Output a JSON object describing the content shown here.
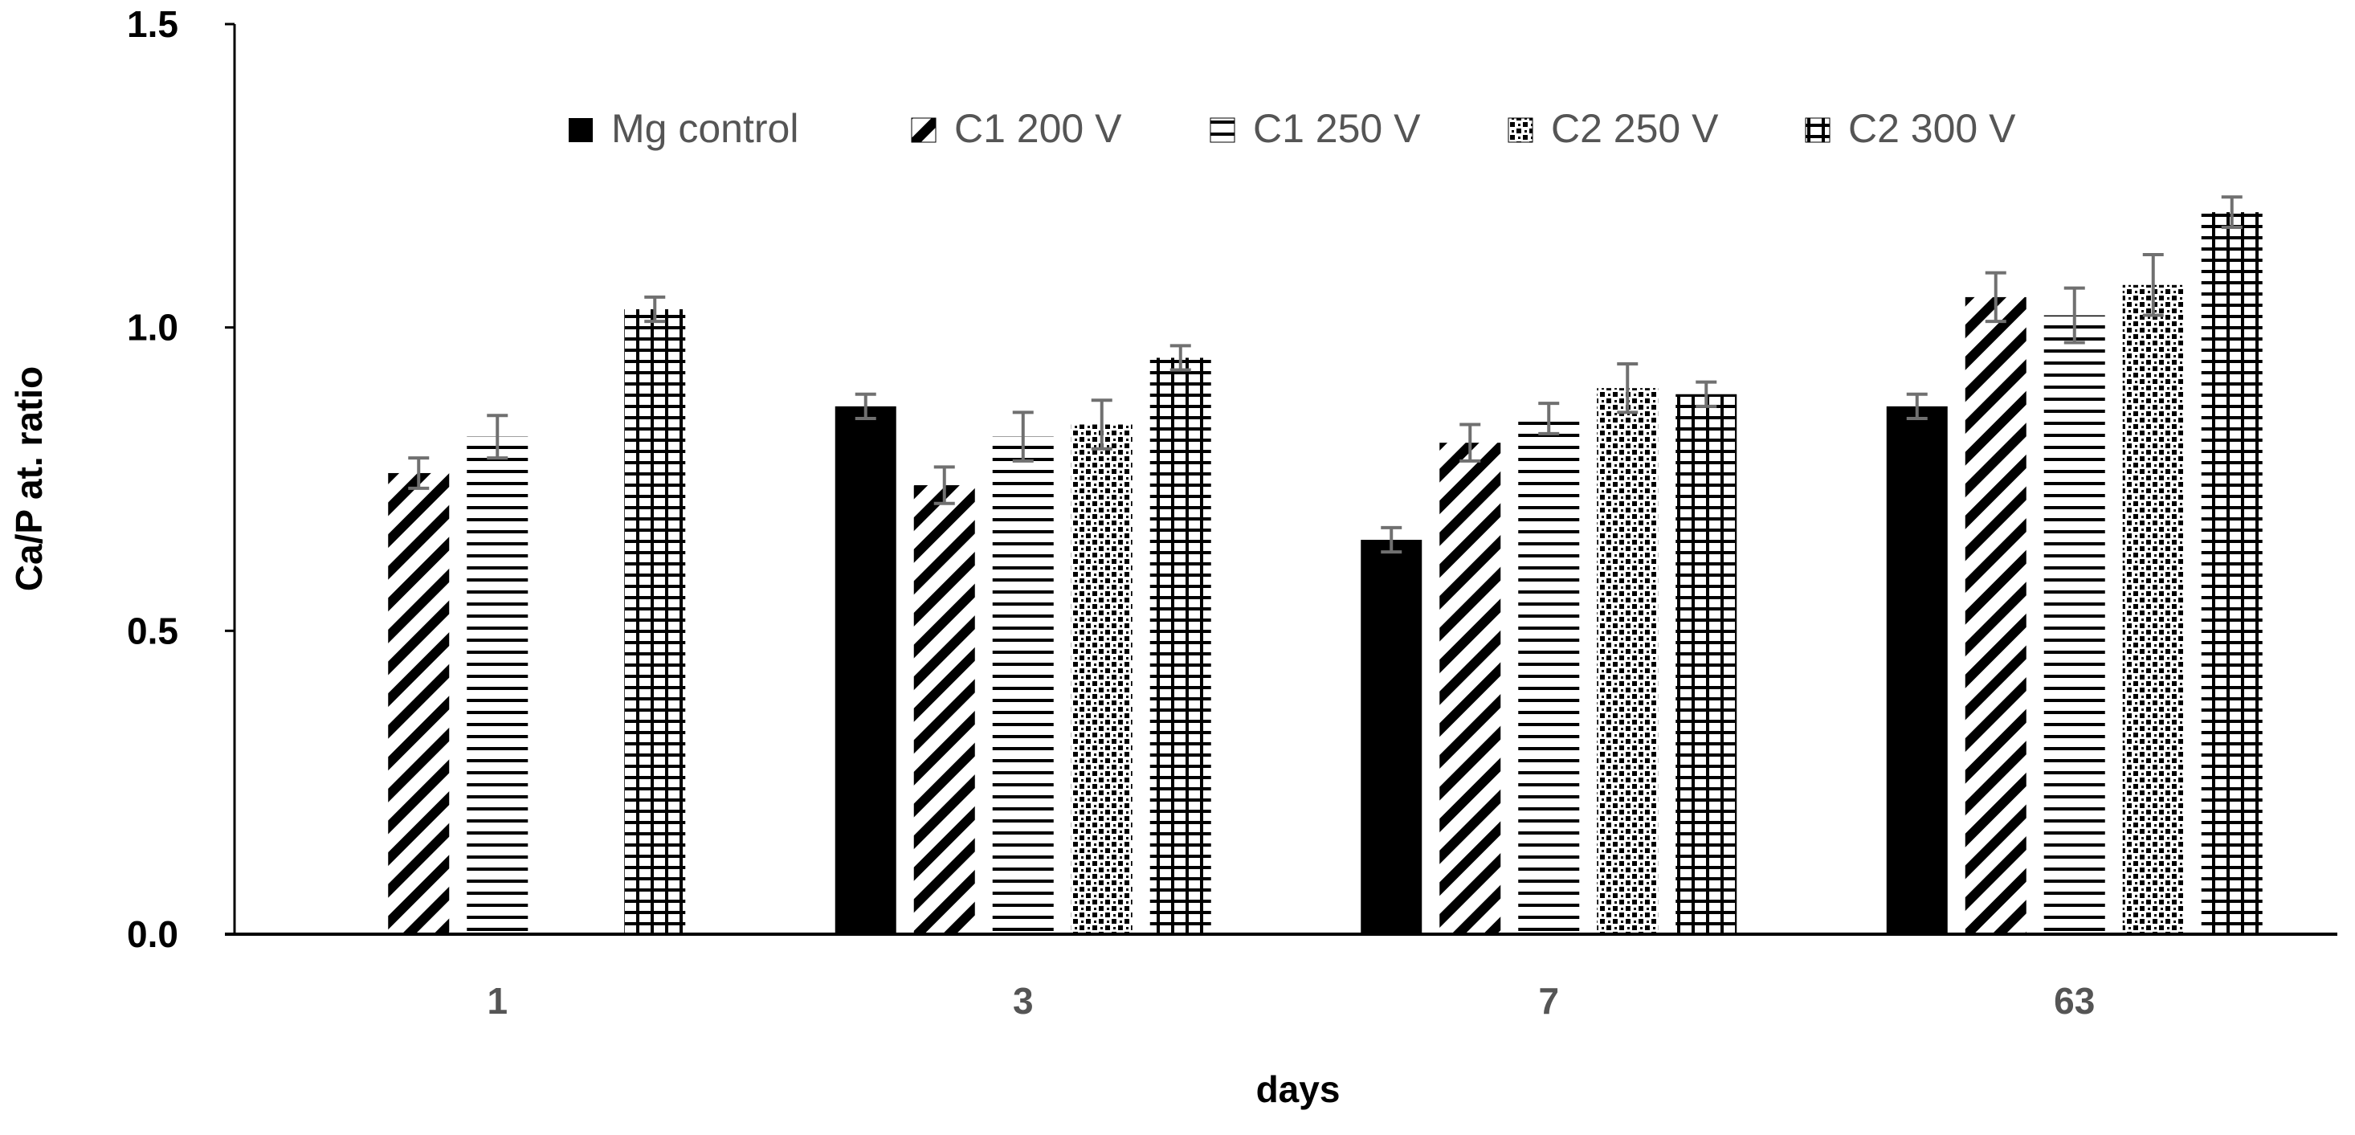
{
  "chart_data": {
    "type": "bar",
    "title": "",
    "xlabel": "days",
    "ylabel": "Ca/P at. ratio",
    "categories": [
      "1",
      "3",
      "7",
      "63"
    ],
    "ylim": [
      0,
      1.5
    ],
    "yticks": [
      "0.0",
      "0.5",
      "1.0",
      "1.5"
    ],
    "ytick_values": [
      0,
      0.5,
      1.0,
      1.5
    ],
    "grid": false,
    "legend_position": "top",
    "series": [
      {
        "name": "Mg control",
        "pattern": "solid",
        "values": [
          null,
          0.87,
          0.65,
          0.87
        ],
        "errors": [
          null,
          0.02,
          0.02,
          0.02
        ]
      },
      {
        "name": "C1 200 V",
        "pattern": "diagonal",
        "values": [
          0.76,
          0.74,
          0.81,
          1.05
        ],
        "errors": [
          0.025,
          0.03,
          0.03,
          0.04
        ]
      },
      {
        "name": "C1 250 V",
        "pattern": "horizontal",
        "values": [
          0.82,
          0.82,
          0.85,
          1.02
        ],
        "errors": [
          0.035,
          0.04,
          0.025,
          0.045
        ]
      },
      {
        "name": "C2 250 V",
        "pattern": "dots",
        "values": [
          null,
          0.84,
          0.9,
          1.07
        ],
        "errors": [
          null,
          0.04,
          0.04,
          0.05
        ]
      },
      {
        "name": "C2 300 V",
        "pattern": "grid",
        "values": [
          1.03,
          0.95,
          0.89,
          1.19
        ],
        "errors": [
          0.02,
          0.02,
          0.02,
          0.025
        ]
      }
    ]
  },
  "colors": {
    "bar": "#000000",
    "background": "#ffffff",
    "error_bar": "#707070",
    "axis": "#000000",
    "label_gray": "#555555"
  }
}
